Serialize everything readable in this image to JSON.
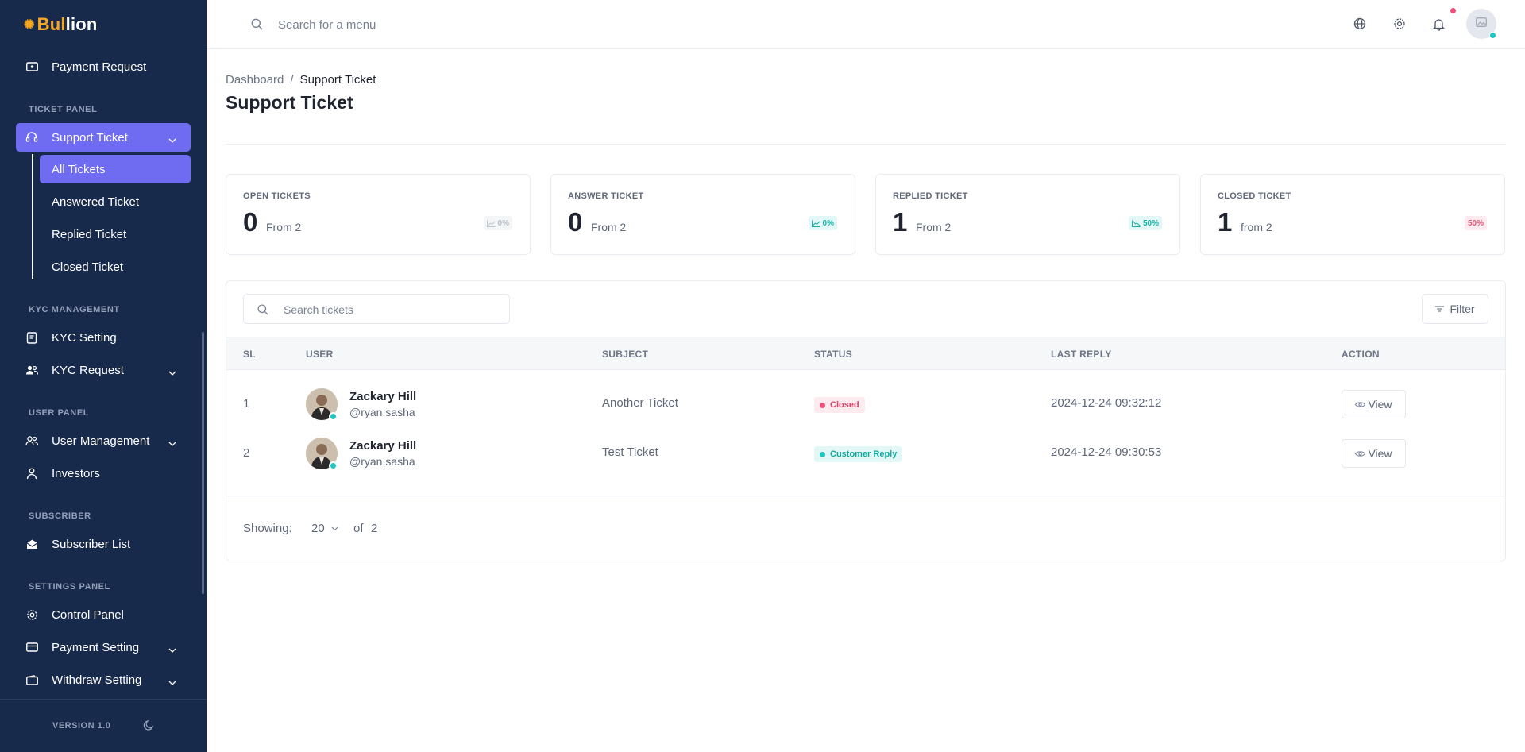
{
  "brand": {
    "logo_part1": "Bul",
    "logo_part2": "lion"
  },
  "sidebar": {
    "payment_request": "Payment Request",
    "sections": {
      "ticket_panel": "TICKET PANEL",
      "kyc_management": "KYC MANAGEMENT",
      "user_panel": "USER PANEL",
      "subscriber": "SUBSCRIBER",
      "settings_panel": "SETTINGS PANEL"
    },
    "support_ticket": "Support Ticket",
    "ticket_sub": {
      "all": "All Tickets",
      "answered": "Answered Ticket",
      "replied": "Replied Ticket",
      "closed": "Closed Ticket"
    },
    "kyc_setting": "KYC Setting",
    "kyc_request": "KYC Request",
    "user_management": "User Management",
    "investors": "Investors",
    "subscriber_list": "Subscriber List",
    "control_panel": "Control Panel",
    "payment_setting": "Payment Setting",
    "withdraw_setting": "Withdraw Setting",
    "version": "VERSION 1.0"
  },
  "header": {
    "search_placeholder": "Search for a menu"
  },
  "breadcrumb": {
    "root": "Dashboard",
    "separator": "/",
    "current": "Support Ticket"
  },
  "page_title": "Support Ticket",
  "stats": [
    {
      "label": "OPEN TICKETS",
      "value": "0",
      "sub": "From 2",
      "badge": "0%",
      "tone": "gray"
    },
    {
      "label": "ANSWER TICKET",
      "value": "0",
      "sub": "From 2",
      "badge": "0%",
      "tone": "teal"
    },
    {
      "label": "REPLIED TICKET",
      "value": "1",
      "sub": "From 2",
      "badge": "50%",
      "tone": "teal"
    },
    {
      "label": "CLOSED TICKET",
      "value": "1",
      "sub": "from 2",
      "badge": "50%",
      "tone": "red"
    }
  ],
  "tickets": {
    "search_placeholder": "Search tickets",
    "filter_label": "Filter",
    "columns": {
      "sl": "SL",
      "user": "USER",
      "subject": "SUBJECT",
      "status": "STATUS",
      "last_reply": "LAST REPLY",
      "action": "ACTION"
    },
    "rows": [
      {
        "sl": "1",
        "name": "Zackary Hill",
        "handle": "@ryan.sasha",
        "subject": "Another Ticket",
        "status": "Closed",
        "last_reply": "2024-12-24 09:32:12",
        "action": "View"
      },
      {
        "sl": "2",
        "name": "Zackary Hill",
        "handle": "@ryan.sasha",
        "subject": "Test Ticket",
        "status": "Customer Reply",
        "last_reply": "2024-12-24 09:30:53",
        "action": "View"
      }
    ],
    "footer": {
      "showing_label": "Showing:",
      "per_page": "20",
      "of_label": "of",
      "total": "2"
    }
  },
  "colors": {
    "sidebar_bg": "#172a4c",
    "accent": "#6f6cf2",
    "logo_gold": "#f5a623",
    "teal": "#1ec8c0",
    "red": "#f0507a"
  }
}
